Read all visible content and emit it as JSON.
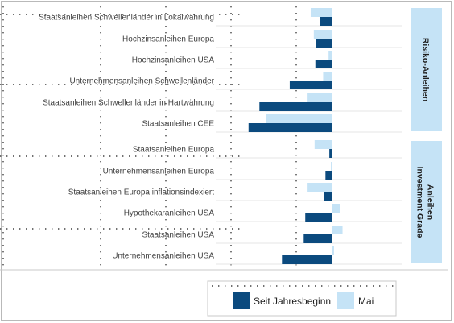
{
  "chart_data": {
    "type": "bar",
    "orientation": "horizontal",
    "categories": [
      "Staatsanleihen Schwellenländer in Lokalwährung",
      "Hochzinsanleihen Europa",
      "Hochzinsanleihen USA",
      "Unternehmensanleihen Schwellenländer",
      "Staatsanleihen Schwellenländer in Hartwährung",
      "Staatsanleihen CEE",
      "Staatsanleihen Europa",
      "Unternehmensanleihen Europa",
      "Staatsanleihen Europa inflationsindexiert",
      "Hypothekaranleihen USA",
      "Staatsanleihen USA",
      "Unternehmensanleihen USA"
    ],
    "series": [
      {
        "name": "Seit Jahresbeginn",
        "color": "#0b4a7e",
        "values": [
          -1.6,
          -2.1,
          -2.2,
          -5.5,
          -9.4,
          -10.8,
          -0.4,
          -0.9,
          -1.1,
          -3.5,
          -3.7,
          -6.5
        ]
      },
      {
        "name": "Mai",
        "color": "#c5e3f6",
        "values": [
          -2.8,
          -2.4,
          -0.5,
          -1.2,
          -3.2,
          -8.6,
          -2.3,
          -0.2,
          -3.2,
          1.0,
          1.3,
          0.2
        ]
      }
    ],
    "groups": [
      {
        "label": "Risiko-Anleihen",
        "first": 0,
        "last": 5
      },
      {
        "label": "Investment Grade Anleihen",
        "first": 6,
        "last": 11
      }
    ],
    "xlim": [
      -12,
      2
    ],
    "legend_position": "bottom",
    "grid": true
  }
}
